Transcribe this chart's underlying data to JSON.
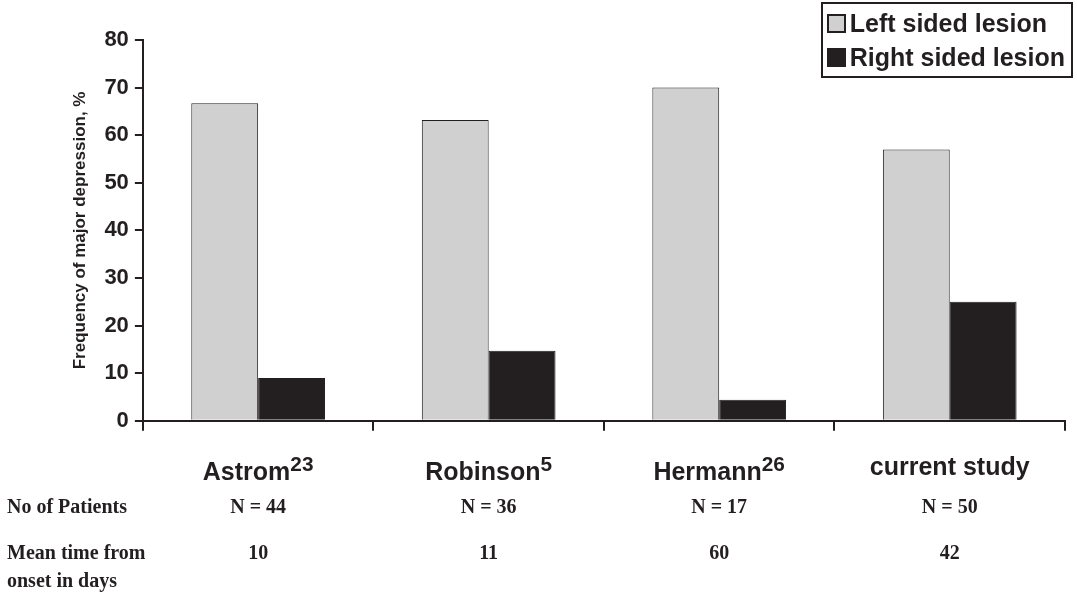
{
  "chart_data": {
    "type": "bar",
    "ylabel": "Frequency of major depression, %",
    "categories": [
      "Astrom$^{23}$",
      "Robinson$^{5}$",
      "Hermann$^{26}$",
      "current study"
    ],
    "series": [
      {
        "name": "Left sided lesion",
        "color": "#d0d0d0",
        "values": [
          66.7,
          63.2,
          70,
          57
        ]
      },
      {
        "name": "Right sided lesion",
        "color": "#231f20",
        "values": [
          9,
          14.7,
          4.4,
          25
        ]
      }
    ],
    "ylim": [
      0,
      80
    ],
    "yticks": [
      0,
      10,
      20,
      30,
      40,
      50,
      60,
      70,
      80
    ],
    "grid": false,
    "legend": "top right",
    "annotations": [
      "No of Patients",
      "N = 44",
      "N = 36",
      "N = 17",
      "N = 50",
      "Mean time from onset in days",
      "10",
      "11",
      "60",
      "42"
    ]
  }
}
